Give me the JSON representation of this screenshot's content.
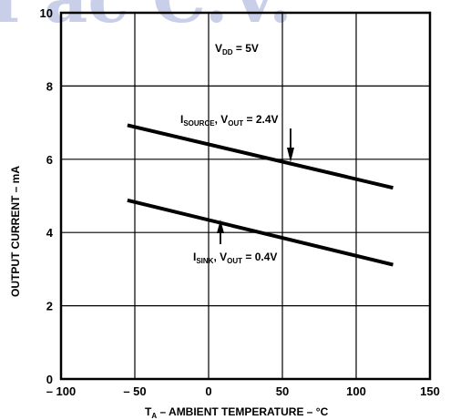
{
  "chart_data": {
    "type": "line",
    "xlabel": {
      "main": "T",
      "sub": "A",
      "rest": " – AMBIENT TEMPERATURE – °C"
    },
    "ylabel": "OUTPUT CURRENT – mA",
    "xlim": [
      -100,
      150
    ],
    "ylim": [
      0,
      10
    ],
    "x_ticks": [
      -100,
      -50,
      0,
      50,
      100,
      150
    ],
    "x_tick_labels": [
      "– 100",
      "– 50",
      "0",
      "50",
      "100",
      "150"
    ],
    "y_ticks": [
      0,
      2,
      4,
      6,
      8,
      10
    ],
    "y_tick_labels": [
      "0",
      "2",
      "4",
      "6",
      "8",
      "10"
    ],
    "grid": true,
    "series": [
      {
        "key": "source",
        "x": [
          -55,
          125
        ],
        "y": [
          6.93,
          5.22
        ]
      },
      {
        "key": "sink",
        "x": [
          -55,
          125
        ],
        "y": [
          4.88,
          3.12
        ]
      }
    ],
    "annotations": [
      {
        "key": "vdd",
        "main": "V",
        "sub": "DD",
        "rest": " = 5V"
      },
      {
        "key": "source",
        "main": "I",
        "sub": "SOURCE",
        "mid": ", V",
        "sub2": "OUT",
        "rest": " = 2.4V"
      },
      {
        "key": "sink",
        "main": "I",
        "sub": "SINK",
        "mid": ", V",
        "sub2": "OUT",
        "rest": " = 0.4V"
      }
    ],
    "watermark": "I   ac C.V."
  }
}
